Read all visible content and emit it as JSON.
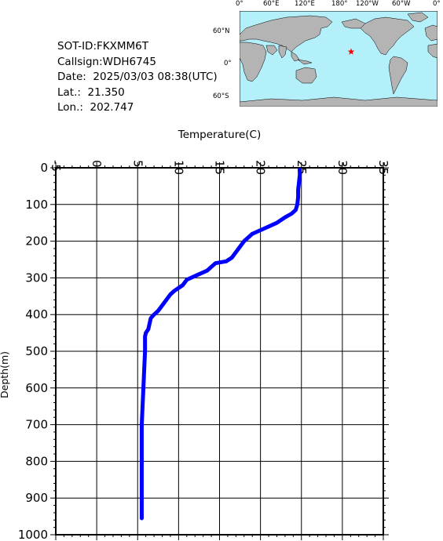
{
  "metadata": {
    "sot_id": "SOT-ID:FKXMM6T",
    "callsign": "Callsign:WDH6745",
    "date": "Date:  2025/03/03 08:38(UTC)",
    "lat": "Lat.:  21.350",
    "lon": "Lon.:  202.747"
  },
  "map": {
    "lon_labels": [
      "0°",
      "60°E",
      "120°E",
      "180°",
      "120°W",
      "60°W",
      "0°"
    ],
    "lat_labels": [
      "60°N",
      "0°",
      "60°S"
    ],
    "ocean_color": "#b4f0fa",
    "land_color": "#b4b4b4",
    "marker_color": "#ff0000",
    "marker_icon": "star-icon",
    "marker_lat": 21.35,
    "marker_lon": 202.747
  },
  "chart_data": {
    "type": "line",
    "title": "",
    "xlabel": "Temperature(C)",
    "ylabel": "Depth(m)",
    "xlim": [
      -5,
      35
    ],
    "ylim": [
      0,
      1000
    ],
    "x_ticks": [
      "-5",
      "0",
      "5",
      "10",
      "15",
      "20",
      "25",
      "30",
      "35"
    ],
    "y_ticks": [
      "0",
      "100",
      "200",
      "300",
      "400",
      "500",
      "600",
      "700",
      "800",
      "900",
      "1000"
    ],
    "axis_position": "x-axis top, y-axis inverted",
    "grid": true,
    "line_color": "#0000ff",
    "series": [
      {
        "points": [
          [
            24.8,
            5
          ],
          [
            24.8,
            20
          ],
          [
            24.7,
            40
          ],
          [
            24.6,
            60
          ],
          [
            24.6,
            80
          ],
          [
            24.5,
            100
          ],
          [
            24.3,
            115
          ],
          [
            23.8,
            125
          ],
          [
            23.0,
            135
          ],
          [
            22.0,
            150
          ],
          [
            20.5,
            165
          ],
          [
            19.0,
            180
          ],
          [
            18.0,
            200
          ],
          [
            17.5,
            215
          ],
          [
            17.0,
            230
          ],
          [
            16.5,
            245
          ],
          [
            15.8,
            255
          ],
          [
            14.5,
            260
          ],
          [
            13.5,
            280
          ],
          [
            12.0,
            295
          ],
          [
            11.0,
            305
          ],
          [
            10.5,
            320
          ],
          [
            9.5,
            335
          ],
          [
            9.0,
            345
          ],
          [
            8.5,
            360
          ],
          [
            8.0,
            375
          ],
          [
            7.5,
            390
          ],
          [
            7.0,
            400
          ],
          [
            6.6,
            410
          ],
          [
            6.5,
            420
          ],
          [
            6.3,
            440
          ],
          [
            6.0,
            450
          ],
          [
            5.9,
            460
          ],
          [
            5.9,
            500
          ],
          [
            5.8,
            550
          ],
          [
            5.7,
            600
          ],
          [
            5.6,
            650
          ],
          [
            5.5,
            700
          ],
          [
            5.5,
            800
          ],
          [
            5.5,
            900
          ],
          [
            5.5,
            955
          ]
        ]
      }
    ]
  }
}
